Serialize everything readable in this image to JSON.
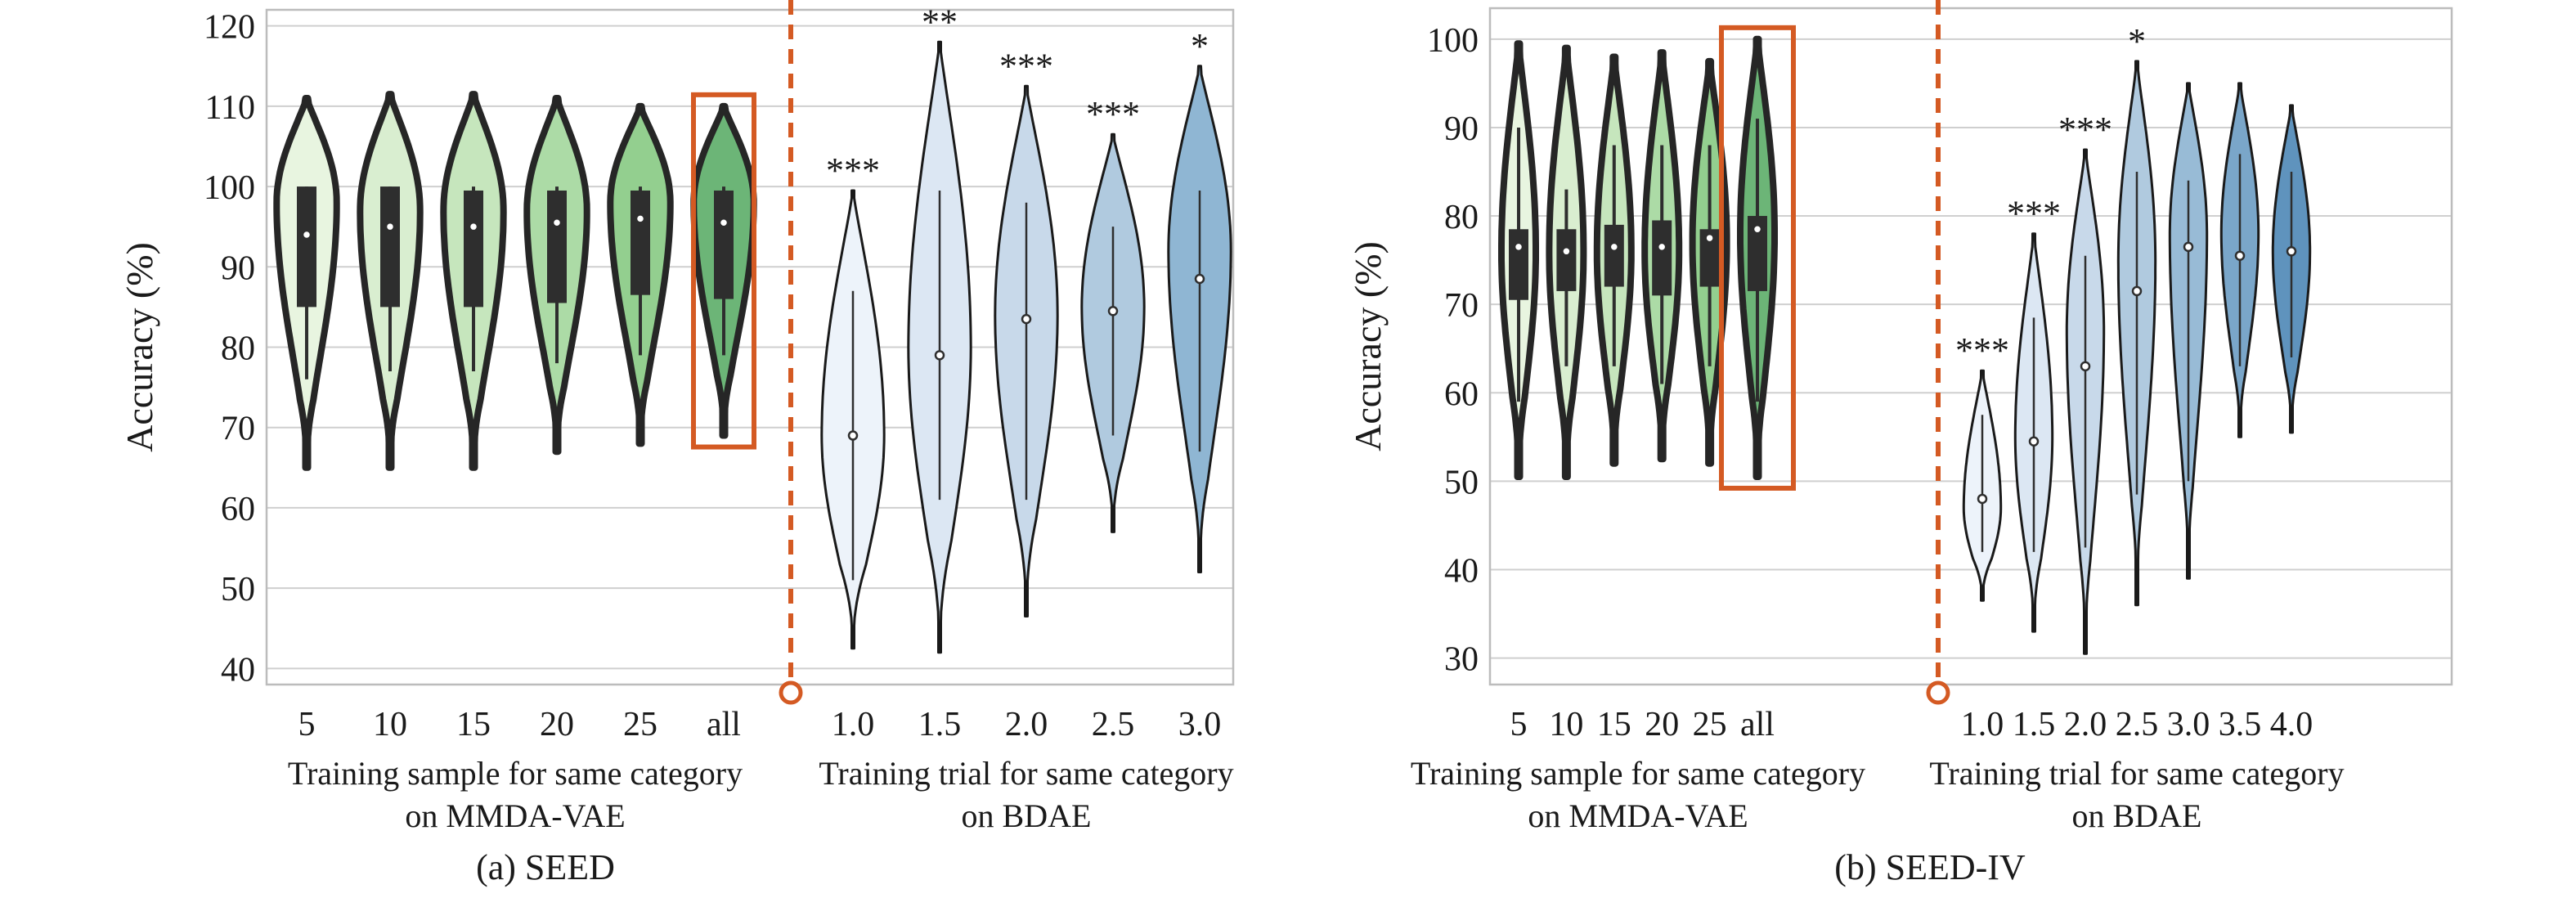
{
  "colors": {
    "axis": "#bcbcbc",
    "grid": "#cfcfcf",
    "highlight": "#d45a23",
    "violin_stroke_green": "#262626",
    "violin_stroke_blue": "#1a1a1a",
    "box": "#2e2e2e"
  },
  "chart_data": [
    {
      "type": "violin",
      "caption": "(a) SEED",
      "ylabel": "Accuracy (%)",
      "ylim": [
        38,
        122
      ],
      "yticks": [
        40,
        50,
        60,
        70,
        80,
        90,
        100,
        110,
        120
      ],
      "grid": true,
      "groups": [
        {
          "xlabel_lines": [
            "Training sample for same category",
            "on MMDA-VAE"
          ],
          "categories": [
            "5",
            "10",
            "15",
            "20",
            "25",
            "all"
          ],
          "fills": [
            "#e8f5e0",
            "#d9eed0",
            "#c6e6bd",
            "#acdba6",
            "#93cf8f",
            "#6cb577"
          ],
          "stroke": "green",
          "highlight": "all",
          "violins": [
            {
              "min": 65,
              "q1": 85,
              "median": 94,
              "q3": 100,
              "max": 111,
              "wlo": 76,
              "whi": 100,
              "mode": 98,
              "sig": ""
            },
            {
              "min": 65,
              "q1": 85,
              "median": 95,
              "q3": 100,
              "max": 111.5,
              "wlo": 77,
              "whi": 100,
              "mode": 97,
              "sig": ""
            },
            {
              "min": 65,
              "q1": 85,
              "median": 95,
              "q3": 99.5,
              "max": 111.5,
              "wlo": 77,
              "whi": 100,
              "mode": 97,
              "sig": ""
            },
            {
              "min": 67,
              "q1": 85.5,
              "median": 95.5,
              "q3": 99.5,
              "max": 111,
              "wlo": 78,
              "whi": 100,
              "mode": 97,
              "sig": ""
            },
            {
              "min": 68,
              "q1": 86.5,
              "median": 96,
              "q3": 99.5,
              "max": 110,
              "wlo": 79,
              "whi": 100,
              "mode": 98,
              "sig": ""
            },
            {
              "min": 69,
              "q1": 86,
              "median": 95.5,
              "q3": 99.5,
              "max": 110,
              "wlo": 79,
              "whi": 100,
              "mode": 98,
              "sig": ""
            }
          ]
        },
        {
          "xlabel_lines": [
            "Training trial for same category",
            "on BDAE"
          ],
          "categories": [
            "1.0",
            "1.5",
            "2.0",
            "2.5",
            "3.0"
          ],
          "fills": [
            "#edf3fa",
            "#dce7f3",
            "#c8d9ea",
            "#b0cadf",
            "#8fb6d3"
          ],
          "stroke": "blue",
          "highlight": "",
          "violins": [
            {
              "min": 42.5,
              "q1": 69,
              "median": 69,
              "q3": 69,
              "max": 99.5,
              "wlo": 51,
              "whi": 87,
              "mode": 69,
              "sig": "***"
            },
            {
              "min": 42,
              "q1": 79,
              "median": 79,
              "q3": 79,
              "max": 118,
              "wlo": 61,
              "whi": 99.5,
              "mode": 80,
              "sig": "**"
            },
            {
              "min": 46.5,
              "q1": 83.5,
              "median": 83.5,
              "q3": 83.5,
              "max": 112.5,
              "wlo": 61,
              "whi": 98,
              "mode": 84,
              "sig": "***"
            },
            {
              "min": 57,
              "q1": 84.5,
              "median": 84.5,
              "q3": 84.5,
              "max": 106.5,
              "wlo": 69,
              "whi": 95,
              "mode": 85,
              "sig": "***"
            },
            {
              "min": 52,
              "q1": 88.5,
              "median": 88.5,
              "q3": 88.5,
              "max": 115,
              "wlo": 67,
              "whi": 99.5,
              "mode": 92,
              "sig": "*"
            }
          ]
        }
      ]
    },
    {
      "type": "violin",
      "caption": "(b) SEED-IV",
      "ylabel": "Accuracy (%)",
      "ylim": [
        27,
        103.5
      ],
      "yticks": [
        30,
        40,
        50,
        60,
        70,
        80,
        90,
        100
      ],
      "grid": true,
      "groups": [
        {
          "xlabel_lines": [
            "Training sample for same category",
            "on MMDA-VAE"
          ],
          "categories": [
            "5",
            "10",
            "15",
            "20",
            "25",
            "all"
          ],
          "fills": [
            "#e8f5e0",
            "#d9eed0",
            "#c6e6bd",
            "#acdba6",
            "#93cf8f",
            "#6cb577"
          ],
          "stroke": "green",
          "highlight": "all",
          "violins": [
            {
              "min": 50.5,
              "q1": 70.5,
              "median": 76.5,
              "q3": 78.5,
              "max": 99.5,
              "wlo": 59,
              "whi": 90,
              "mode": 76,
              "sig": ""
            },
            {
              "min": 50.5,
              "q1": 71.5,
              "median": 76,
              "q3": 78.5,
              "max": 99,
              "wlo": 63,
              "whi": 83,
              "mode": 76,
              "sig": ""
            },
            {
              "min": 52,
              "q1": 72,
              "median": 76.5,
              "q3": 79,
              "max": 98,
              "wlo": 63,
              "whi": 88,
              "mode": 76,
              "sig": ""
            },
            {
              "min": 52.5,
              "q1": 71,
              "median": 76.5,
              "q3": 79.5,
              "max": 98.5,
              "wlo": 61,
              "whi": 88,
              "mode": 76,
              "sig": ""
            },
            {
              "min": 52,
              "q1": 72,
              "median": 77.5,
              "q3": 78.5,
              "max": 97.5,
              "wlo": 63,
              "whi": 88,
              "mode": 77,
              "sig": ""
            },
            {
              "min": 50.5,
              "q1": 71.5,
              "median": 78.5,
              "q3": 80,
              "max": 100,
              "wlo": 59,
              "whi": 91,
              "mode": 78,
              "sig": ""
            }
          ]
        },
        {
          "xlabel_lines": [
            "Training trial for same category",
            "on BDAE"
          ],
          "categories": [
            "1.0",
            "1.5",
            "2.0",
            "2.5",
            "3.0",
            "3.5",
            "4.0"
          ],
          "fills": [
            "#edf3fa",
            "#dce7f3",
            "#c8d9ea",
            "#b0cadf",
            "#98bbd6",
            "#7aa6c9",
            "#5f93bd"
          ],
          "stroke": "blue",
          "highlight": "",
          "violins": [
            {
              "min": 36.5,
              "q1": 48,
              "median": 48,
              "q3": 48,
              "max": 62.5,
              "wlo": 42,
              "whi": 57.5,
              "mode": 47,
              "sig": "***"
            },
            {
              "min": 33,
              "q1": 54.5,
              "median": 54.5,
              "q3": 54.5,
              "max": 78,
              "wlo": 42,
              "whi": 68.5,
              "mode": 55,
              "sig": "***"
            },
            {
              "min": 30.5,
              "q1": 63,
              "median": 63,
              "q3": 63,
              "max": 87.5,
              "wlo": 42.5,
              "whi": 75.5,
              "mode": 67,
              "sig": "***"
            },
            {
              "min": 36,
              "q1": 71.5,
              "median": 71.5,
              "q3": 71.5,
              "max": 97.5,
              "wlo": 48.5,
              "whi": 85,
              "mode": 75,
              "sig": "*"
            },
            {
              "min": 39,
              "q1": 76.5,
              "median": 76.5,
              "q3": 76.5,
              "max": 95,
              "wlo": 50,
              "whi": 84,
              "mode": 78,
              "sig": ""
            },
            {
              "min": 55,
              "q1": 75.5,
              "median": 75.5,
              "q3": 75.5,
              "max": 95,
              "wlo": 63,
              "whi": 87,
              "mode": 78,
              "sig": ""
            },
            {
              "min": 55.5,
              "q1": 76,
              "median": 76,
              "q3": 76,
              "max": 92.5,
              "wlo": 64,
              "whi": 85,
              "mode": 76,
              "sig": ""
            }
          ]
        }
      ]
    }
  ]
}
